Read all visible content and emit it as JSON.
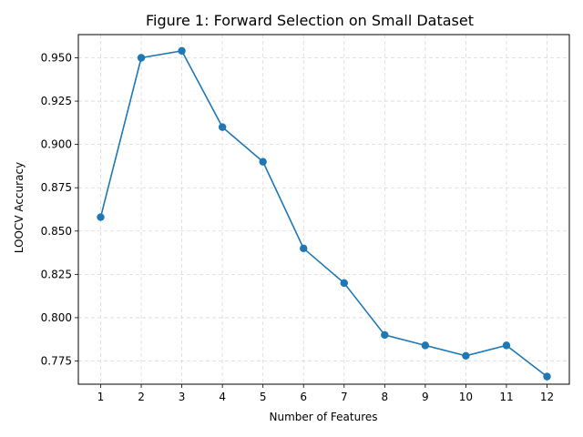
{
  "chart_data": {
    "type": "line",
    "title": "Figure 1: Forward Selection on Small Dataset",
    "xlabel": "Number of Features",
    "ylabel": "LOOCV Accuracy",
    "x": [
      1,
      2,
      3,
      4,
      5,
      6,
      7,
      8,
      9,
      10,
      11,
      12
    ],
    "series": [
      {
        "values": [
          0.858,
          0.95,
          0.954,
          0.91,
          0.89,
          0.84,
          0.82,
          0.79,
          0.784,
          0.778,
          0.784,
          0.766
        ],
        "color": "#1f77b4",
        "marker": "circle"
      }
    ],
    "xticks": [
      "1",
      "2",
      "3",
      "4",
      "5",
      "6",
      "7",
      "8",
      "9",
      "10",
      "11",
      "12"
    ],
    "yticks": [
      0.775,
      0.8,
      0.825,
      0.85,
      0.875,
      0.9,
      0.925,
      0.95
    ],
    "ytick_labels": [
      "0.775",
      "0.800",
      "0.825",
      "0.850",
      "0.875",
      "0.900",
      "0.925",
      "0.950"
    ],
    "xlim": [
      0.45,
      12.55
    ],
    "ylim": [
      0.7616,
      0.9634
    ],
    "grid": true,
    "grid_style": "dashed"
  }
}
